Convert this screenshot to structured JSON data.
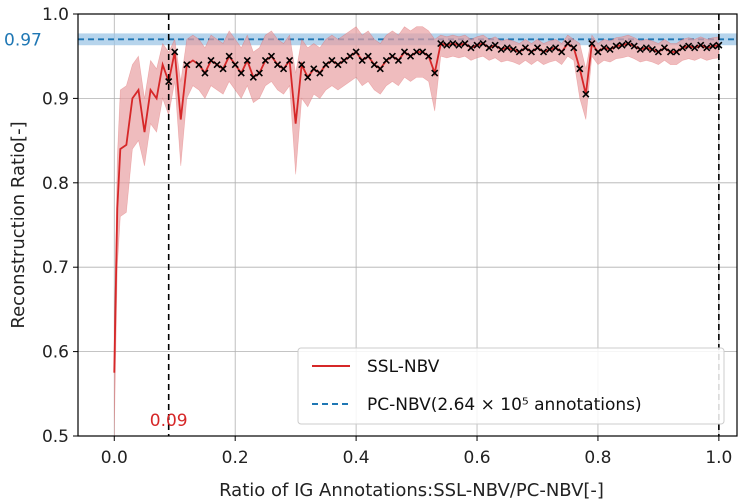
{
  "chart_data": {
    "type": "line",
    "xlabel": "Ratio of IG Annotations:SSL-NBV/PC-NBV[-]",
    "ylabel": "Reconstruction Ratio[-]",
    "xlim": [
      -0.06,
      1.03
    ],
    "ylim": [
      0.5,
      1.0
    ],
    "xticks": [
      "0.0",
      "0.2",
      "0.4",
      "0.6",
      "0.8",
      "1.0"
    ],
    "yticks": [
      "0.5",
      "0.6",
      "0.7",
      "0.8",
      "0.9",
      "1.0"
    ],
    "grid": true,
    "legend_position": "lower-right",
    "colors": {
      "ssl_line": "#d62728",
      "ssl_band": "#e8a0a2",
      "pc_line": "#1f77b4",
      "pc_band": "#9ec5e6",
      "vline": "#000000",
      "marker": "#000000"
    },
    "annotations": {
      "y_ref_label": "0.97",
      "x_ref_label": "0.09",
      "x_ref_value": 0.09,
      "x_end_value": 1.0
    },
    "series": [
      {
        "name": "SSL-NBV",
        "x": [
          0.0,
          0.005,
          0.01,
          0.02,
          0.03,
          0.04,
          0.05,
          0.06,
          0.07,
          0.08,
          0.09,
          0.1,
          0.11,
          0.12,
          0.13,
          0.14,
          0.15,
          0.16,
          0.17,
          0.18,
          0.19,
          0.2,
          0.21,
          0.22,
          0.23,
          0.24,
          0.25,
          0.26,
          0.27,
          0.28,
          0.29,
          0.3,
          0.31,
          0.32,
          0.33,
          0.34,
          0.35,
          0.36,
          0.37,
          0.38,
          0.39,
          0.4,
          0.41,
          0.42,
          0.43,
          0.44,
          0.45,
          0.46,
          0.47,
          0.48,
          0.49,
          0.5,
          0.51,
          0.52,
          0.53,
          0.54,
          0.55,
          0.56,
          0.57,
          0.58,
          0.59,
          0.6,
          0.61,
          0.62,
          0.63,
          0.64,
          0.65,
          0.66,
          0.67,
          0.68,
          0.69,
          0.7,
          0.71,
          0.72,
          0.73,
          0.74,
          0.75,
          0.76,
          0.77,
          0.78,
          0.79,
          0.8,
          0.81,
          0.82,
          0.83,
          0.84,
          0.85,
          0.86,
          0.87,
          0.88,
          0.89,
          0.9,
          0.91,
          0.92,
          0.93,
          0.94,
          0.95,
          0.96,
          0.97,
          0.98,
          0.99,
          1.0
        ],
        "values": [
          0.575,
          0.77,
          0.84,
          0.845,
          0.9,
          0.91,
          0.86,
          0.91,
          0.9,
          0.94,
          0.92,
          0.955,
          0.875,
          0.94,
          0.945,
          0.94,
          0.93,
          0.945,
          0.94,
          0.935,
          0.95,
          0.94,
          0.93,
          0.945,
          0.925,
          0.93,
          0.945,
          0.95,
          0.94,
          0.935,
          0.945,
          0.87,
          0.94,
          0.925,
          0.935,
          0.93,
          0.94,
          0.945,
          0.94,
          0.945,
          0.95,
          0.955,
          0.945,
          0.95,
          0.94,
          0.935,
          0.945,
          0.95,
          0.945,
          0.955,
          0.95,
          0.955,
          0.955,
          0.95,
          0.93,
          0.965,
          0.963,
          0.965,
          0.963,
          0.965,
          0.96,
          0.963,
          0.965,
          0.96,
          0.963,
          0.958,
          0.96,
          0.958,
          0.955,
          0.96,
          0.955,
          0.96,
          0.955,
          0.958,
          0.96,
          0.955,
          0.965,
          0.96,
          0.935,
          0.905,
          0.965,
          0.955,
          0.96,
          0.958,
          0.962,
          0.963,
          0.965,
          0.962,
          0.958,
          0.96,
          0.958,
          0.955,
          0.96,
          0.955,
          0.955,
          0.96,
          0.962,
          0.96,
          0.963,
          0.96,
          0.962,
          0.963
        ],
        "lower": [
          0.5,
          0.7,
          0.76,
          0.765,
          0.84,
          0.85,
          0.82,
          0.87,
          0.86,
          0.9,
          0.88,
          0.92,
          0.82,
          0.9,
          0.915,
          0.91,
          0.9,
          0.915,
          0.91,
          0.905,
          0.92,
          0.91,
          0.9,
          0.915,
          0.895,
          0.9,
          0.915,
          0.92,
          0.91,
          0.905,
          0.915,
          0.81,
          0.9,
          0.89,
          0.905,
          0.9,
          0.91,
          0.915,
          0.91,
          0.915,
          0.92,
          0.925,
          0.915,
          0.92,
          0.91,
          0.905,
          0.915,
          0.92,
          0.915,
          0.925,
          0.92,
          0.925,
          0.925,
          0.92,
          0.885,
          0.95,
          0.948,
          0.95,
          0.948,
          0.95,
          0.945,
          0.948,
          0.95,
          0.945,
          0.948,
          0.943,
          0.945,
          0.943,
          0.94,
          0.945,
          0.94,
          0.945,
          0.94,
          0.943,
          0.945,
          0.94,
          0.95,
          0.945,
          0.9,
          0.875,
          0.95,
          0.94,
          0.945,
          0.943,
          0.947,
          0.948,
          0.95,
          0.947,
          0.943,
          0.945,
          0.943,
          0.94,
          0.945,
          0.94,
          0.94,
          0.945,
          0.947,
          0.945,
          0.948,
          0.945,
          0.947,
          0.948
        ],
        "upper": [
          0.63,
          0.83,
          0.91,
          0.915,
          0.94,
          0.95,
          0.9,
          0.945,
          0.935,
          0.965,
          0.955,
          0.97,
          0.92,
          0.97,
          0.975,
          0.97,
          0.96,
          0.975,
          0.97,
          0.965,
          0.98,
          0.97,
          0.96,
          0.975,
          0.955,
          0.96,
          0.975,
          0.98,
          0.97,
          0.965,
          0.975,
          0.93,
          0.97,
          0.96,
          0.965,
          0.96,
          0.97,
          0.975,
          0.97,
          0.975,
          0.98,
          0.985,
          0.975,
          0.98,
          0.97,
          0.965,
          0.975,
          0.98,
          0.975,
          0.985,
          0.98,
          0.985,
          0.985,
          0.98,
          0.97,
          0.975,
          0.973,
          0.975,
          0.973,
          0.975,
          0.97,
          0.973,
          0.975,
          0.97,
          0.973,
          0.968,
          0.97,
          0.968,
          0.965,
          0.97,
          0.965,
          0.97,
          0.965,
          0.968,
          0.97,
          0.965,
          0.975,
          0.97,
          0.965,
          0.935,
          0.975,
          0.965,
          0.97,
          0.968,
          0.972,
          0.973,
          0.975,
          0.972,
          0.968,
          0.97,
          0.968,
          0.965,
          0.97,
          0.965,
          0.965,
          0.97,
          0.972,
          0.97,
          0.973,
          0.97,
          0.972,
          0.973
        ]
      },
      {
        "name": "PC-NBV(2.64 × 10⁵ annotations)",
        "y": 0.97,
        "band": [
          0.963,
          0.977
        ]
      }
    ],
    "markers": {
      "symbol": "x",
      "x": [
        0.09,
        0.1,
        0.12,
        0.14,
        0.15,
        0.16,
        0.17,
        0.18,
        0.19,
        0.2,
        0.21,
        0.22,
        0.23,
        0.24,
        0.25,
        0.26,
        0.27,
        0.28,
        0.29,
        0.31,
        0.32,
        0.33,
        0.34,
        0.35,
        0.36,
        0.37,
        0.38,
        0.39,
        0.4,
        0.41,
        0.42,
        0.43,
        0.44,
        0.45,
        0.46,
        0.47,
        0.48,
        0.49,
        0.5,
        0.51,
        0.52,
        0.53,
        0.54,
        0.55,
        0.56,
        0.57,
        0.58,
        0.59,
        0.6,
        0.61,
        0.62,
        0.63,
        0.64,
        0.65,
        0.66,
        0.67,
        0.68,
        0.69,
        0.7,
        0.71,
        0.72,
        0.73,
        0.74,
        0.75,
        0.76,
        0.77,
        0.78,
        0.79,
        0.8,
        0.81,
        0.82,
        0.83,
        0.84,
        0.85,
        0.86,
        0.87,
        0.88,
        0.89,
        0.9,
        0.91,
        0.92,
        0.93,
        0.94,
        0.95,
        0.96,
        0.97,
        0.98,
        0.99,
        1.0
      ],
      "y": [
        0.92,
        0.955,
        0.94,
        0.94,
        0.93,
        0.945,
        0.94,
        0.935,
        0.95,
        0.94,
        0.93,
        0.945,
        0.925,
        0.93,
        0.945,
        0.95,
        0.94,
        0.935,
        0.945,
        0.94,
        0.925,
        0.935,
        0.93,
        0.94,
        0.945,
        0.94,
        0.945,
        0.95,
        0.955,
        0.945,
        0.95,
        0.94,
        0.935,
        0.945,
        0.95,
        0.945,
        0.955,
        0.95,
        0.955,
        0.955,
        0.95,
        0.93,
        0.965,
        0.963,
        0.965,
        0.963,
        0.965,
        0.96,
        0.963,
        0.965,
        0.96,
        0.963,
        0.958,
        0.96,
        0.958,
        0.955,
        0.96,
        0.955,
        0.96,
        0.955,
        0.958,
        0.96,
        0.955,
        0.965,
        0.96,
        0.935,
        0.905,
        0.965,
        0.955,
        0.96,
        0.958,
        0.962,
        0.963,
        0.965,
        0.962,
        0.958,
        0.96,
        0.958,
        0.955,
        0.96,
        0.955,
        0.955,
        0.96,
        0.962,
        0.96,
        0.963,
        0.96,
        0.962,
        0.963
      ]
    }
  }
}
